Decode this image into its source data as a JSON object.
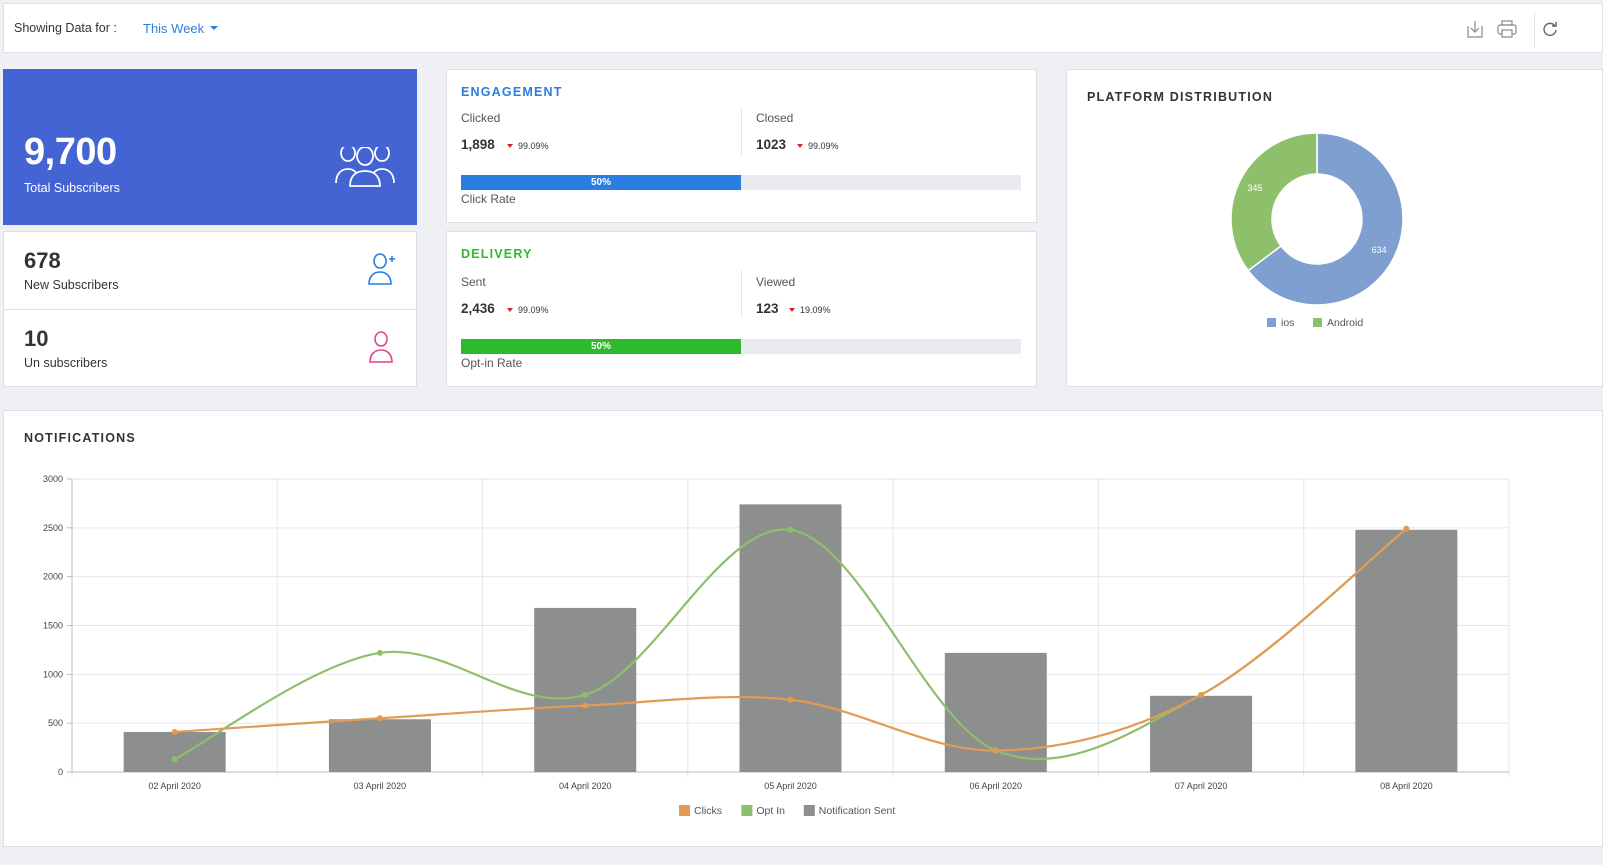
{
  "topbar": {
    "label": "Showing Data for :",
    "period": "This Week",
    "icons": [
      "download-icon",
      "print-icon",
      "refresh-icon"
    ]
  },
  "total_subscribers": {
    "value": "9,700",
    "label": "Total Subscribers"
  },
  "new_subscribers": {
    "value": "678",
    "label": "New Subscribers"
  },
  "unsubscribers": {
    "value": "10",
    "label": "Un subscribers"
  },
  "engagement": {
    "title": "ENGAGEMENT",
    "clicked_label": "Clicked",
    "clicked_value": "1,898",
    "clicked_change": "99.09%",
    "closed_label": "Closed",
    "closed_value": "1023",
    "closed_change": "99.09%",
    "rate_text": "50%",
    "rate_fraction": 0.5,
    "rate_label": "Click Rate"
  },
  "delivery": {
    "title": "DELIVERY",
    "sent_label": "Sent",
    "sent_value": "2,436",
    "sent_change": "99.09%",
    "viewed_label": "Viewed",
    "viewed_value": "123",
    "viewed_change": "19.09%",
    "rate_text": "50%",
    "rate_fraction": 0.5,
    "rate_label": "Opt-in Rate"
  },
  "colors": {
    "primary": "#4464d4",
    "engagement": "#2a7de1",
    "delivery": "#2dbb2d",
    "down": "#d9222a",
    "ios": "#7e9fd0",
    "android": "#8ec06c",
    "clicks": "#e39a55",
    "optin": "#8ec06c",
    "sent": "#8c8f8e"
  },
  "platform": {
    "title": "PLATFORM DISTRIBUTION",
    "chart_data": {
      "type": "pie",
      "labels": [
        "ios",
        "Android"
      ],
      "values": [
        634,
        345
      ],
      "legend": "bottom"
    }
  },
  "notifications": {
    "title": "NOTIFICATIONS",
    "chart_data": {
      "type": "bar",
      "categories": [
        "02 April 2020",
        "03 April 2020",
        "04 April 2020",
        "05 April 2020",
        "06 April 2020",
        "07 April 2020",
        "08 April 2020"
      ],
      "series": [
        {
          "name": "Clicks",
          "type": "line",
          "values": [
            410,
            550,
            680,
            740,
            220,
            790,
            2490
          ]
        },
        {
          "name": "Opt In",
          "type": "line",
          "values": [
            130,
            1220,
            790,
            2480,
            220,
            790,
            2490
          ]
        },
        {
          "name": "Notification Sent",
          "type": "bar",
          "values": [
            410,
            540,
            1680,
            2740,
            1220,
            780,
            2480
          ]
        }
      ],
      "ylim": [
        0,
        3000
      ],
      "yticks": [
        "0",
        "500",
        "1000",
        "1500",
        "2000",
        "2500",
        "3000"
      ],
      "grid": true,
      "legend": "bottom"
    }
  }
}
